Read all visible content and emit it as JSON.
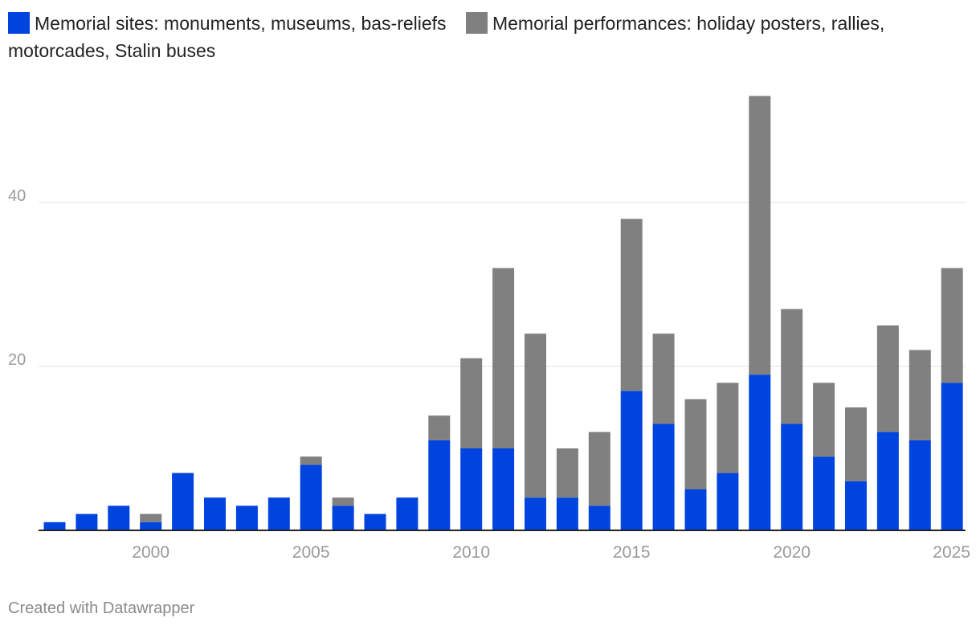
{
  "colors": {
    "sites": "#0044e0",
    "performances": "#808080",
    "grid": "#e1e1e1",
    "axis_text": "#9a9a9a"
  },
  "legend": {
    "sites": "Memorial sites: monuments, museums, bas-reliefs",
    "performances": "Memorial performances: holiday posters, rallies, motorcades, Stalin buses"
  },
  "footer": "Created with Datawrapper",
  "chart_data": {
    "type": "bar",
    "stacked": true,
    "title": "",
    "xlabel": "",
    "ylabel": "",
    "x": [
      1997,
      1998,
      1999,
      2000,
      2001,
      2002,
      2003,
      2004,
      2005,
      2006,
      2007,
      2008,
      2009,
      2010,
      2011,
      2012,
      2013,
      2014,
      2015,
      2016,
      2017,
      2018,
      2019,
      2020,
      2021,
      2022,
      2023,
      2024,
      2025
    ],
    "series": [
      {
        "name": "Memorial sites: monuments, museums, bas-reliefs",
        "values": [
          1,
          2,
          3,
          1,
          7,
          4,
          3,
          4,
          8,
          3,
          2,
          4,
          11,
          10,
          10,
          4,
          4,
          3,
          17,
          13,
          5,
          7,
          19,
          13,
          9,
          6,
          12,
          11,
          18
        ]
      },
      {
        "name": "Memorial performances: holiday posters, rallies, motorcades, Stalin buses",
        "values": [
          0,
          0,
          0,
          1,
          0,
          0,
          0,
          0,
          1,
          1,
          0,
          0,
          3,
          11,
          22,
          20,
          6,
          9,
          21,
          11,
          11,
          11,
          34,
          14,
          9,
          9,
          13,
          11,
          14
        ]
      }
    ],
    "xticks": [
      2000,
      2005,
      2010,
      2015,
      2020,
      2025
    ],
    "yticks": [
      20,
      40
    ],
    "ylim": [
      0,
      53
    ]
  }
}
